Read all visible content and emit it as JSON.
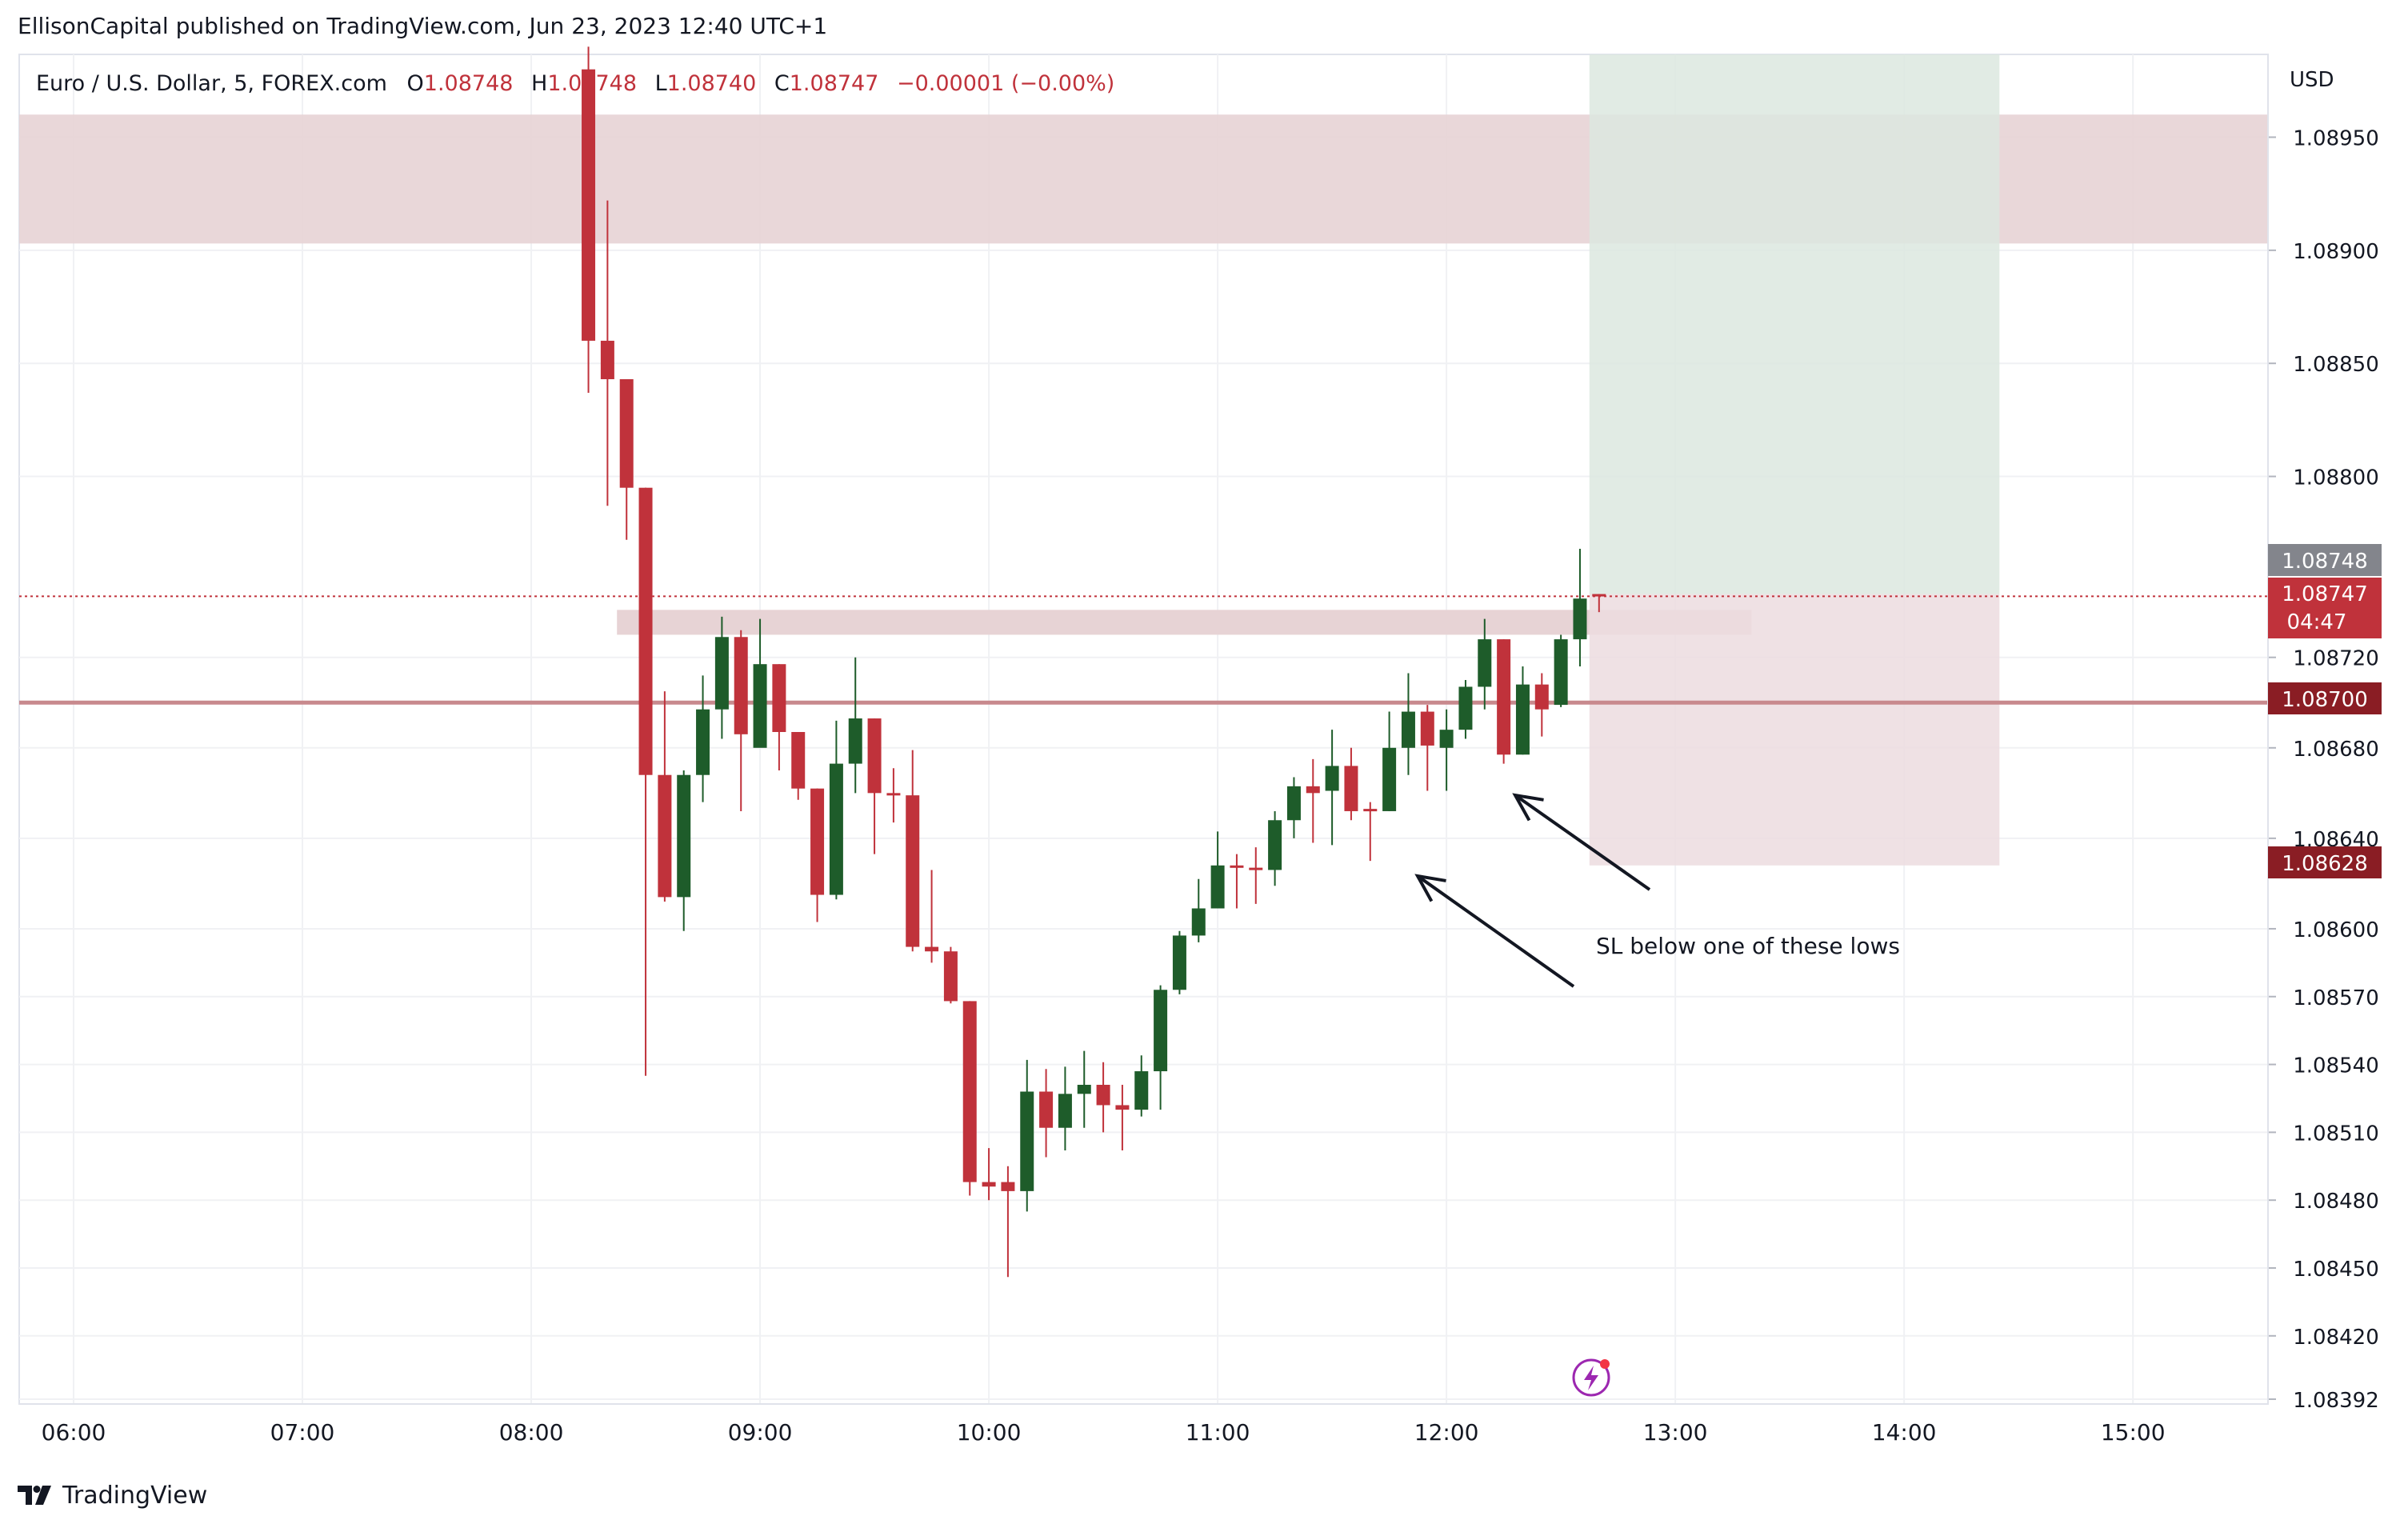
{
  "header": {
    "publish_text": "EllisonCapital published on TradingView.com, Jun 23, 2023 12:40 UTC+1"
  },
  "legend": {
    "symbol": "Euro / U.S. Dollar, 5, FOREX.com",
    "o_label": "O",
    "o_value": "1.08748",
    "h_label": "H",
    "h_value": "1.08748",
    "l_label": "L",
    "l_value": "1.08740",
    "c_label": "C",
    "c_value": "1.08747",
    "change": "−0.00001 (−0.00%)"
  },
  "axis": {
    "currency": "USD"
  },
  "price_labels": {
    "entry": "1.08748",
    "last": "1.08747",
    "countdown": "04:47",
    "level": "1.08700",
    "stop": "1.08628"
  },
  "annotation": {
    "text": "SL below one of these lows"
  },
  "footer": {
    "brand": "TradingView"
  },
  "colors": {
    "up": "#1e5c2a",
    "down": "#c0323b",
    "zone": "#e7d3d5",
    "profit": "#dce8df",
    "loss": "#ecdcdf",
    "level_line": "#c8898d",
    "grid": "#f0f1f4",
    "entry_tag": "#83858c",
    "last_tag": "#c0323b",
    "level_tag": "#8a1d24",
    "stop_tag": "#8a1d24"
  },
  "chart_data": {
    "type": "candlestick",
    "symbol": "EURUSD",
    "timeframe": "5",
    "x_ticks": [
      "06:00",
      "07:00",
      "08:00",
      "09:00",
      "10:00",
      "11:00",
      "12:00",
      "13:00",
      "14:00",
      "15:00"
    ],
    "y_ticks": [
      1.0895,
      1.089,
      1.0885,
      1.088,
      1.0872,
      1.0868,
      1.0864,
      1.086,
      1.0857,
      1.0854,
      1.0851,
      1.0848,
      1.0845,
      1.0842,
      1.08392
    ],
    "y_tick_labels": [
      "1.08950",
      "1.08900",
      "1.08850",
      "1.08800",
      "1.08720",
      "1.08680",
      "1.08640",
      "1.08600",
      "1.08570",
      "1.08540",
      "1.08510",
      "1.08480",
      "1.08450",
      "1.08420",
      "1.08392"
    ],
    "candles": [
      {
        "t": "08:15",
        "o": 1.0898,
        "h": 1.0899,
        "l": 1.08837,
        "c": 1.0886
      },
      {
        "t": "08:20",
        "o": 1.0886,
        "h": 1.08922,
        "l": 1.08787,
        "c": 1.08843
      },
      {
        "t": "08:25",
        "o": 1.08843,
        "h": 1.08843,
        "l": 1.08772,
        "c": 1.08795
      },
      {
        "t": "08:30",
        "o": 1.08795,
        "h": 1.08795,
        "l": 1.08535,
        "c": 1.08668
      },
      {
        "t": "08:35",
        "o": 1.08668,
        "h": 1.08705,
        "l": 1.08612,
        "c": 1.08614
      },
      {
        "t": "08:40",
        "o": 1.08614,
        "h": 1.0867,
        "l": 1.08599,
        "c": 1.08668
      },
      {
        "t": "08:45",
        "o": 1.08668,
        "h": 1.08712,
        "l": 1.08656,
        "c": 1.08697
      },
      {
        "t": "08:50",
        "o": 1.08697,
        "h": 1.08738,
        "l": 1.08684,
        "c": 1.08729
      },
      {
        "t": "08:55",
        "o": 1.08729,
        "h": 1.08732,
        "l": 1.08652,
        "c": 1.08686
      },
      {
        "t": "09:00",
        "o": 1.0868,
        "h": 1.08737,
        "l": 1.08685,
        "c": 1.08717
      },
      {
        "t": "09:05",
        "o": 1.08717,
        "h": 1.08717,
        "l": 1.0867,
        "c": 1.08687
      },
      {
        "t": "09:10",
        "o": 1.08687,
        "h": 1.08687,
        "l": 1.08657,
        "c": 1.08662
      },
      {
        "t": "09:15",
        "o": 1.08662,
        "h": 1.08662,
        "l": 1.08603,
        "c": 1.08615
      },
      {
        "t": "09:20",
        "o": 1.08615,
        "h": 1.08692,
        "l": 1.08613,
        "c": 1.08673
      },
      {
        "t": "09:25",
        "o": 1.08673,
        "h": 1.0872,
        "l": 1.0866,
        "c": 1.08693
      },
      {
        "t": "09:30",
        "o": 1.08693,
        "h": 1.08693,
        "l": 1.08633,
        "c": 1.0866
      },
      {
        "t": "09:35",
        "o": 1.0866,
        "h": 1.08671,
        "l": 1.08647,
        "c": 1.08659
      },
      {
        "t": "09:40",
        "o": 1.08659,
        "h": 1.08679,
        "l": 1.0859,
        "c": 1.08592
      },
      {
        "t": "09:45",
        "o": 1.08592,
        "h": 1.08626,
        "l": 1.08585,
        "c": 1.0859
      },
      {
        "t": "09:50",
        "o": 1.0859,
        "h": 1.08592,
        "l": 1.08567,
        "c": 1.08568
      },
      {
        "t": "09:55",
        "o": 1.08568,
        "h": 1.08568,
        "l": 1.08482,
        "c": 1.08488
      },
      {
        "t": "10:00",
        "o": 1.08488,
        "h": 1.08503,
        "l": 1.0848,
        "c": 1.08486
      },
      {
        "t": "10:05",
        "o": 1.08488,
        "h": 1.08495,
        "l": 1.08446,
        "c": 1.08484
      },
      {
        "t": "10:10",
        "o": 1.08484,
        "h": 1.08542,
        "l": 1.08475,
        "c": 1.08528
      },
      {
        "t": "10:15",
        "o": 1.08528,
        "h": 1.08538,
        "l": 1.08499,
        "c": 1.08512
      },
      {
        "t": "10:20",
        "o": 1.08512,
        "h": 1.08539,
        "l": 1.08502,
        "c": 1.08527
      },
      {
        "t": "10:25",
        "o": 1.08527,
        "h": 1.08546,
        "l": 1.08512,
        "c": 1.08531
      },
      {
        "t": "10:30",
        "o": 1.08531,
        "h": 1.08541,
        "l": 1.0851,
        "c": 1.08522
      },
      {
        "t": "10:35",
        "o": 1.08522,
        "h": 1.08531,
        "l": 1.08502,
        "c": 1.0852
      },
      {
        "t": "10:40",
        "o": 1.0852,
        "h": 1.08544,
        "l": 1.08517,
        "c": 1.08537
      },
      {
        "t": "10:45",
        "o": 1.08537,
        "h": 1.08575,
        "l": 1.0852,
        "c": 1.08573
      },
      {
        "t": "10:50",
        "o": 1.08573,
        "h": 1.08599,
        "l": 1.08571,
        "c": 1.08597
      },
      {
        "t": "10:55",
        "o": 1.08597,
        "h": 1.08622,
        "l": 1.08594,
        "c": 1.08609
      },
      {
        "t": "11:00",
        "o": 1.08609,
        "h": 1.08643,
        "l": 1.08609,
        "c": 1.08628
      },
      {
        "t": "11:05",
        "o": 1.08628,
        "h": 1.08633,
        "l": 1.08609,
        "c": 1.08627
      },
      {
        "t": "11:10",
        "o": 1.08627,
        "h": 1.08636,
        "l": 1.08611,
        "c": 1.08626
      },
      {
        "t": "11:15",
        "o": 1.08626,
        "h": 1.08652,
        "l": 1.08619,
        "c": 1.08648
      },
      {
        "t": "11:20",
        "o": 1.08648,
        "h": 1.08667,
        "l": 1.0864,
        "c": 1.08663
      },
      {
        "t": "11:25",
        "o": 1.08663,
        "h": 1.08675,
        "l": 1.08638,
        "c": 1.0866
      },
      {
        "t": "11:30",
        "o": 1.08661,
        "h": 1.08688,
        "l": 1.08637,
        "c": 1.08672
      },
      {
        "t": "11:35",
        "o": 1.08672,
        "h": 1.0868,
        "l": 1.08648,
        "c": 1.08652
      },
      {
        "t": "11:40",
        "o": 1.08653,
        "h": 1.08656,
        "l": 1.0863,
        "c": 1.08652
      },
      {
        "t": "11:45",
        "o": 1.08652,
        "h": 1.08696,
        "l": 1.08652,
        "c": 1.0868
      },
      {
        "t": "11:50",
        "o": 1.0868,
        "h": 1.08713,
        "l": 1.08668,
        "c": 1.08696
      },
      {
        "t": "11:55",
        "o": 1.08696,
        "h": 1.08699,
        "l": 1.08661,
        "c": 1.08681
      },
      {
        "t": "12:00",
        "o": 1.0868,
        "h": 1.08697,
        "l": 1.08661,
        "c": 1.08688
      },
      {
        "t": "12:05",
        "o": 1.08688,
        "h": 1.0871,
        "l": 1.08684,
        "c": 1.08707
      },
      {
        "t": "12:10",
        "o": 1.08707,
        "h": 1.08737,
        "l": 1.08697,
        "c": 1.08728
      },
      {
        "t": "12:15",
        "o": 1.08728,
        "h": 1.08728,
        "l": 1.08673,
        "c": 1.08677
      },
      {
        "t": "12:20",
        "o": 1.08677,
        "h": 1.08716,
        "l": 1.08677,
        "c": 1.08708
      },
      {
        "t": "12:25",
        "o": 1.08708,
        "h": 1.08713,
        "l": 1.08685,
        "c": 1.08697
      },
      {
        "t": "12:30",
        "o": 1.08699,
        "h": 1.0873,
        "l": 1.08698,
        "c": 1.08728
      },
      {
        "t": "12:35",
        "o": 1.08728,
        "h": 1.08768,
        "l": 1.08716,
        "c": 1.08746
      },
      {
        "t": "12:40",
        "o": 1.08748,
        "h": 1.08748,
        "l": 1.0874,
        "c": 1.08747
      }
    ],
    "zones": [
      {
        "kind": "supply",
        "from": "08:00",
        "to": "15:30",
        "top": 1.0896,
        "bottom": 1.08903
      },
      {
        "kind": "resistance",
        "from": "08:25",
        "to": "13:20",
        "top": 1.08741,
        "bottom": 1.0873
      }
    ],
    "levels": [
      1.087
    ],
    "position": {
      "type": "long",
      "entry": 1.08748,
      "stop": 1.08628,
      "target_top_of_view": 1.08985,
      "from": "12:40",
      "to": "14:25"
    },
    "y_range": [
      1.08392,
      1.08985
    ],
    "x_range": [
      "05:55",
      "15:35"
    ],
    "grid": true
  }
}
